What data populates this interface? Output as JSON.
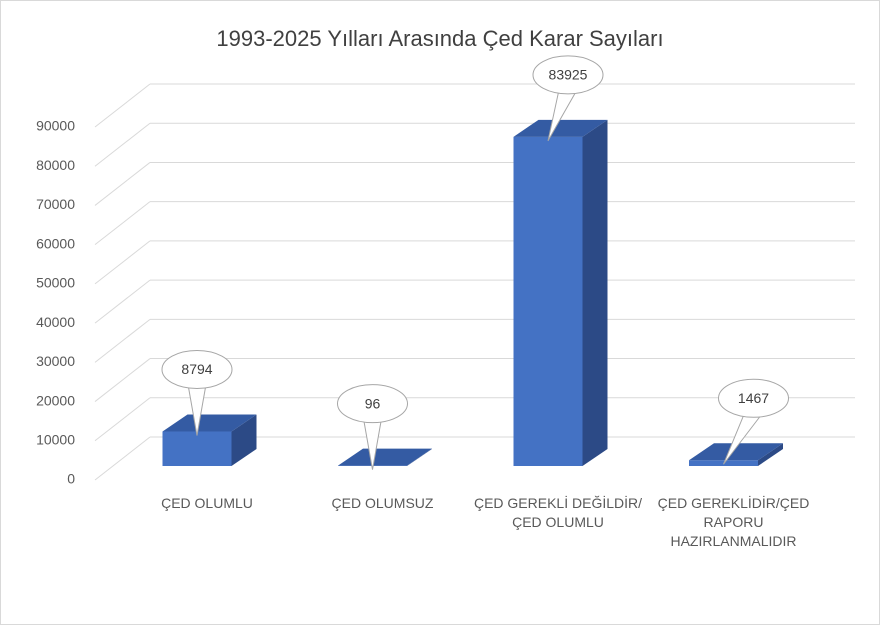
{
  "chart_data": {
    "type": "bar3d",
    "title": "1993-2025 Yılları Arasında Çed Karar Sayıları",
    "categories": [
      "ÇED OLUMLU",
      "ÇED OLUMSUZ",
      "ÇED GEREKLİ DEĞİLDİR/ÇED OLUMLU",
      "ÇED GEREKLİDİR/ÇED RAPORU HAZIRLANMALIDIR"
    ],
    "values": [
      8794,
      96,
      83925,
      1467
    ],
    "color": "#4472c4",
    "ylim": [
      0,
      90000
    ],
    "yticks": [
      0,
      10000,
      20000,
      30000,
      40000,
      50000,
      60000,
      70000,
      80000,
      90000
    ],
    "grid": true
  }
}
